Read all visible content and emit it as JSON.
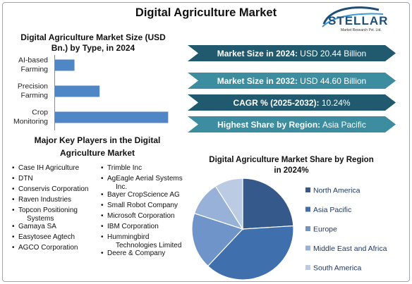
{
  "title": "Digital Agriculture Market",
  "logo": {
    "brand": "STELLAR",
    "tagline": "Market Research Pvt. Ltd."
  },
  "bar_chart_title": "Digital Agriculture Market Size (USD Bn.) by Type, in 2024",
  "arrows": [
    {
      "label": "Market Size in 2024:",
      "value": " USD 20.44 Billion",
      "color": "#215a6e"
    },
    {
      "label": "Market Size in 2032:",
      "value": " USD 44.60 Billion",
      "color": "#3d8da0"
    },
    {
      "label": "CAGR % (2025-2032):",
      "value": " 10.24%",
      "color": "#215a6e"
    },
    {
      "label": "Highest Share by Region:",
      "value": " Asia Pacific",
      "color": "#3d8da0"
    }
  ],
  "players_title": "Major Key Players in the Digital Agriculture Market",
  "players_left": [
    [
      "Case IH Agriculture"
    ],
    [
      "DTN"
    ],
    [
      "Conservis Corporation"
    ],
    [
      "Raven Industries"
    ],
    [
      "Topcon Positioning",
      "Systems"
    ],
    [
      "Gamaya SA"
    ],
    [
      "Easytosee Agtech"
    ],
    [
      "AGCO Corporation"
    ]
  ],
  "players_right": [
    [
      "Trimble Inc"
    ],
    [
      "AgEagle Aerial Systems",
      "Inc."
    ],
    [
      "Bayer CropScience AG"
    ],
    [
      "Small Robot Company"
    ],
    [
      "Microsoft Corporation"
    ],
    [
      "IBM Corporation"
    ],
    [
      "Hummingbird",
      "Technologies Limited"
    ],
    [
      "Deere & Company"
    ]
  ],
  "pie_title": "Digital Agriculture Market Share by Region in 2024%",
  "chart_data": [
    {
      "type": "bar",
      "orientation": "horizontal",
      "title": "Digital Agriculture Market Size (USD Bn.) by Type, in 2024",
      "categories": [
        "AI-based Farming",
        "Precision Farming",
        "Crop Monitoring"
      ],
      "category_lines": [
        [
          "AI-based",
          "Farming"
        ],
        [
          "Precision",
          "Farming"
        ],
        [
          "Crop",
          "Monitoring"
        ]
      ],
      "values": [
        1.7,
        3.9,
        9.9
      ],
      "xlim": [
        0,
        10
      ],
      "color": "#4f86c6",
      "grid": false,
      "axis_values_shown": false
    },
    {
      "type": "pie",
      "title": "Digital Agriculture Market Share by Region in 2024%",
      "categories": [
        "North America",
        "Asia Pacific",
        "Europe",
        "Middle East and Africa",
        "South America"
      ],
      "values": [
        24,
        38,
        18,
        11,
        9
      ],
      "colors": [
        "#34598a",
        "#3f6fad",
        "#6e94c9",
        "#98b1d8",
        "#bccbe4"
      ],
      "legend_position": "right"
    }
  ]
}
